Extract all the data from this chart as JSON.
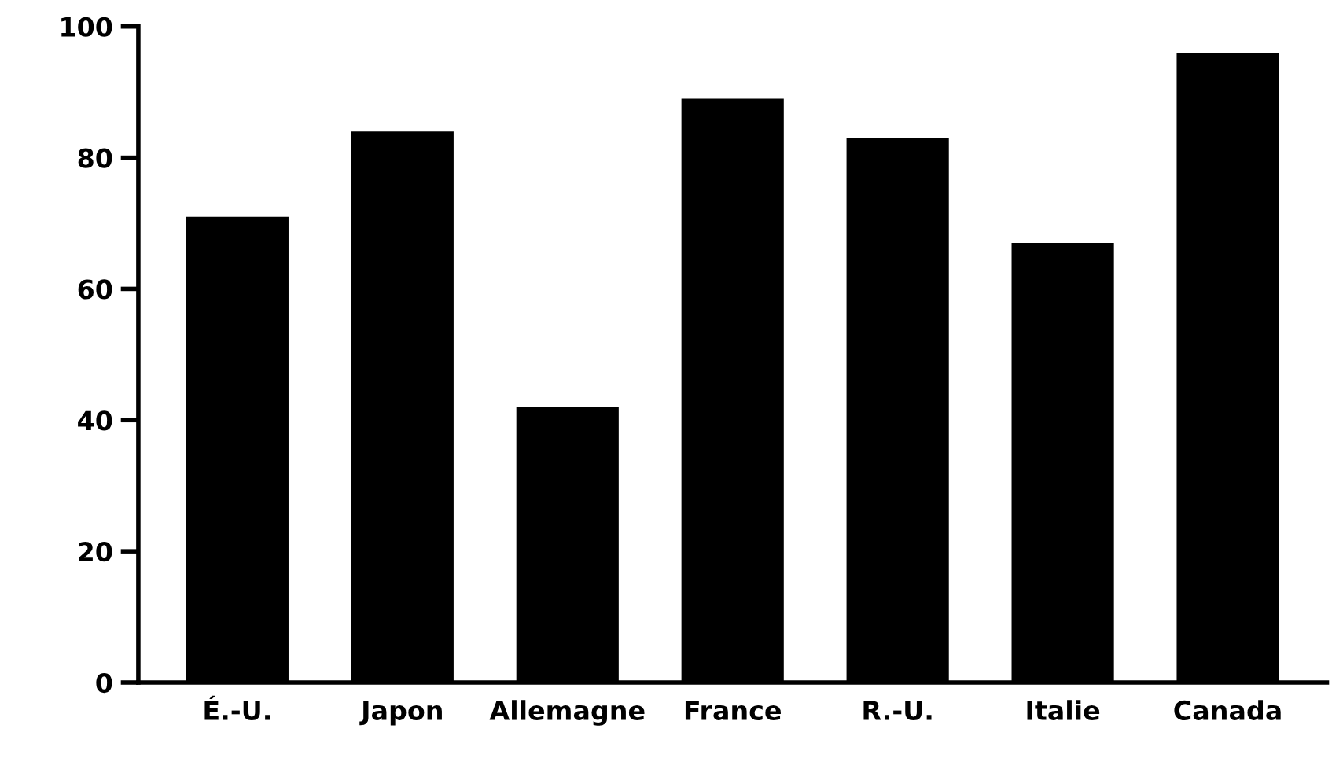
{
  "chart_data": {
    "type": "bar",
    "categories": [
      "É.-U.",
      "Japon",
      "Allemagne",
      "France",
      "R.-U.",
      "Italie",
      "Canada"
    ],
    "values": [
      71,
      84,
      42,
      89,
      83,
      67,
      96
    ],
    "color": "#000000",
    "ylim": [
      0,
      100
    ],
    "yticks": [
      0,
      20,
      40,
      60,
      80,
      100
    ],
    "grid": false,
    "legend": false
  }
}
